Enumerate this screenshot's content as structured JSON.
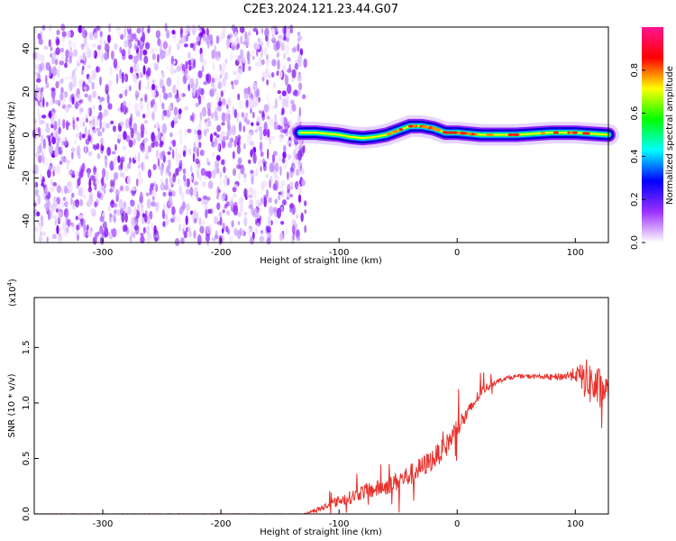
{
  "title": "C2E3.2024.121.23.44.G07",
  "chart_data": [
    {
      "type": "heatmap",
      "panel": "spectrogram",
      "xlabel": "Height of straight line (km)",
      "ylabel": "Frequency (Hz)",
      "xlim": [
        -358,
        128
      ],
      "ylim": [
        -50,
        50
      ],
      "xticks": [
        -300,
        -200,
        -100,
        0,
        100
      ],
      "yticks": [
        -40,
        -20,
        0,
        20,
        40
      ],
      "noise_region": {
        "x": [
          -358,
          -133
        ],
        "y": [
          -50,
          50
        ]
      },
      "signal_track": [
        {
          "x": -133,
          "y": 1
        },
        {
          "x": -120,
          "y": 1
        },
        {
          "x": -100,
          "y": 0
        },
        {
          "x": -90,
          "y": -1
        },
        {
          "x": -80,
          "y": -1.5
        },
        {
          "x": -70,
          "y": -1
        },
        {
          "x": -60,
          "y": 0
        },
        {
          "x": -50,
          "y": 2
        },
        {
          "x": -40,
          "y": 4
        },
        {
          "x": -30,
          "y": 4
        },
        {
          "x": -20,
          "y": 3
        },
        {
          "x": -10,
          "y": 1
        },
        {
          "x": 0,
          "y": 1
        },
        {
          "x": 20,
          "y": 0
        },
        {
          "x": 50,
          "y": 0
        },
        {
          "x": 80,
          "y": 1
        },
        {
          "x": 100,
          "y": 1
        },
        {
          "x": 128,
          "y": 0
        }
      ],
      "colorbar": {
        "label": "Normalized spectral amplitude",
        "range": [
          0,
          1
        ],
        "ticks": [
          "0.0",
          "0.2",
          "0.4",
          "0.6",
          "0.8"
        ],
        "colors": [
          "#ffffff",
          "#9b30ff",
          "#0000ff",
          "#00ffff",
          "#00ff00",
          "#ffff00",
          "#ff0000",
          "#ff1493"
        ]
      }
    },
    {
      "type": "line",
      "panel": "snr",
      "xlabel": "Height of straight line (km)",
      "ylabel": "SNR (10 * v/v)",
      "yscale_label": "(x10",
      "yscale_exp": "4",
      "yscale_close": ")",
      "xlim": [
        -358,
        128
      ],
      "ylim": [
        0,
        1.95
      ],
      "xticks": [
        -300,
        -200,
        -100,
        0,
        100
      ],
      "yticks": [
        "0.0",
        "0.5",
        "1.0",
        "1.5"
      ],
      "ytick_values": [
        0,
        0.5,
        1.0,
        1.5
      ],
      "color": "#e8322c",
      "series": [
        {
          "x": [
            -358,
            -300,
            -200,
            -130,
            -115,
            -100,
            -90,
            -80,
            -70,
            -60,
            -50,
            -40,
            -30,
            -20,
            -10,
            0,
            10,
            20,
            30,
            40,
            50,
            60,
            70,
            80,
            90,
            100,
            110,
            120,
            128
          ],
          "y": [
            0.0,
            0.0,
            0.0,
            0.0,
            0.05,
            0.12,
            0.15,
            0.2,
            0.22,
            0.25,
            0.3,
            0.35,
            0.42,
            0.5,
            0.6,
            0.78,
            0.92,
            1.1,
            1.18,
            1.22,
            1.24,
            1.24,
            1.24,
            1.23,
            1.24,
            1.26,
            1.2,
            1.12,
            1.12
          ],
          "noise": [
            0.002,
            0.002,
            0.002,
            0.002,
            0.03,
            0.05,
            0.06,
            0.07,
            0.08,
            0.08,
            0.09,
            0.1,
            0.1,
            0.1,
            0.1,
            0.1,
            0.07,
            0.05,
            0.03,
            0.02,
            0.02,
            0.02,
            0.02,
            0.03,
            0.04,
            0.06,
            0.2,
            0.2,
            0.1
          ]
        }
      ]
    }
  ]
}
